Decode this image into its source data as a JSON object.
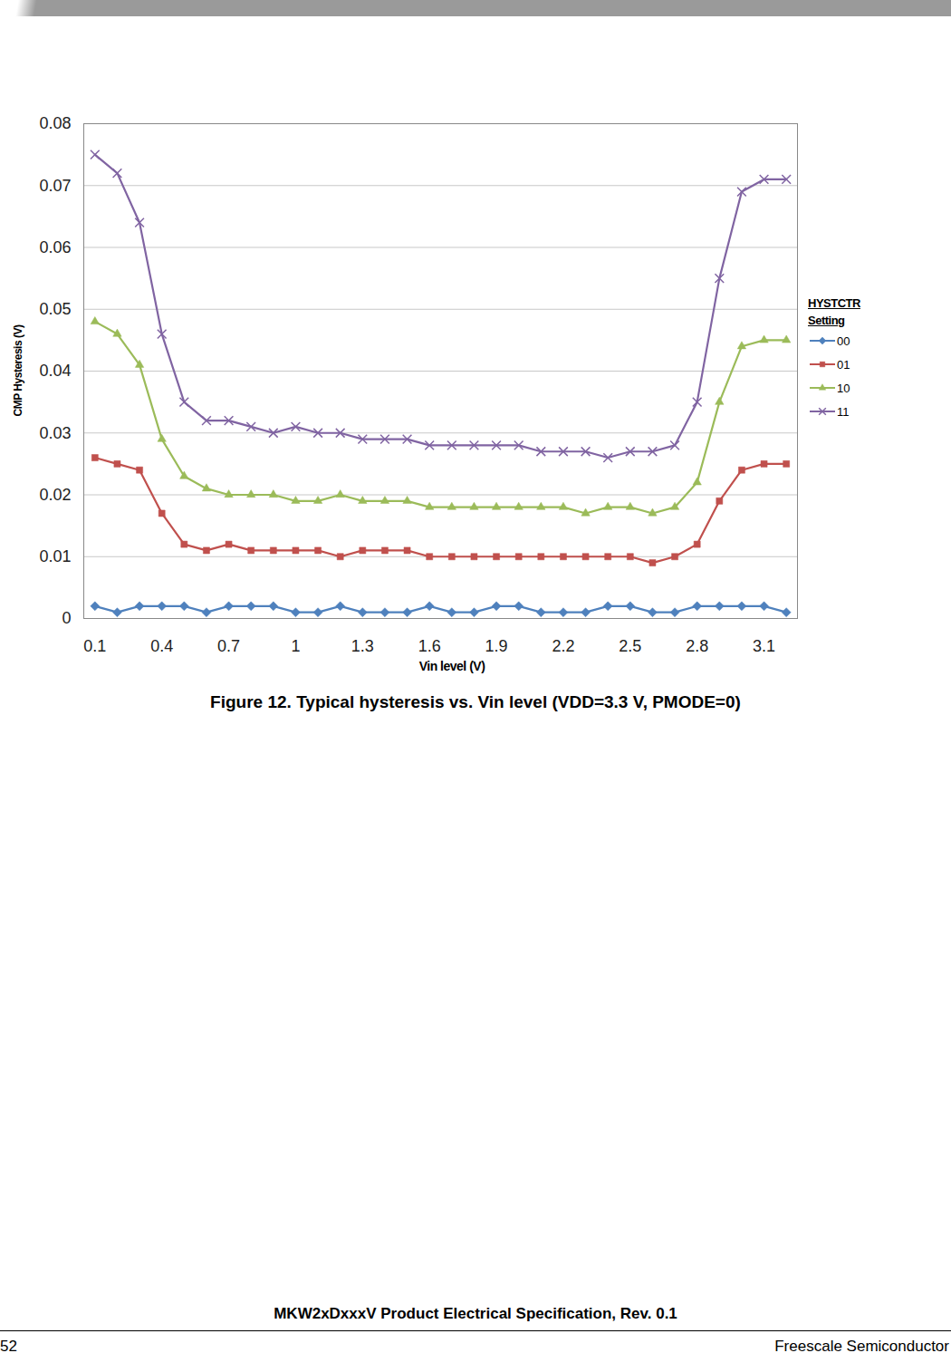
{
  "chart_data": {
    "type": "line",
    "title": "Figure 12. Typical hysteresis vs. Vin level (VDD=3.3 V, PMODE=0)",
    "x_label": "Vin level (V)",
    "y_label": "CMP Hysteresis (V)",
    "legend_title": "HYSTCTR Setting",
    "legend": "right",
    "grid": true,
    "x": [
      0.1,
      0.2,
      0.3,
      0.4,
      0.5,
      0.6,
      0.7,
      0.8,
      0.9,
      1.0,
      1.1,
      1.2,
      1.3,
      1.4,
      1.5,
      1.6,
      1.7,
      1.8,
      1.9,
      2.0,
      2.1,
      2.2,
      2.3,
      2.4,
      2.5,
      2.6,
      2.7,
      2.8,
      2.9,
      3.0,
      3.1,
      3.2
    ],
    "xlim": [
      0.05,
      3.25
    ],
    "xticks": [
      0.1,
      0.4,
      0.7,
      1,
      1.3,
      1.6,
      1.9,
      2.2,
      2.5,
      2.8,
      3.1
    ],
    "ylim": [
      0,
      0.08
    ],
    "yticks": [
      0,
      0.01,
      0.02,
      0.03,
      0.04,
      0.05,
      0.06,
      0.07,
      0.08
    ],
    "series": [
      {
        "name": "00",
        "color": "#4f81bd",
        "marker": "diamond",
        "values": [
          0.002,
          0.001,
          0.002,
          0.002,
          0.002,
          0.001,
          0.002,
          0.002,
          0.002,
          0.001,
          0.001,
          0.002,
          0.001,
          0.001,
          0.001,
          0.002,
          0.001,
          0.001,
          0.002,
          0.002,
          0.001,
          0.001,
          0.001,
          0.002,
          0.002,
          0.001,
          0.001,
          0.002,
          0.002,
          0.002,
          0.002,
          0.001
        ]
      },
      {
        "name": "01",
        "color": "#c0504d",
        "marker": "square",
        "values": [
          0.026,
          0.025,
          0.024,
          0.017,
          0.012,
          0.011,
          0.012,
          0.011,
          0.011,
          0.011,
          0.011,
          0.01,
          0.011,
          0.011,
          0.011,
          0.01,
          0.01,
          0.01,
          0.01,
          0.01,
          0.01,
          0.01,
          0.01,
          0.01,
          0.01,
          0.009,
          0.01,
          0.012,
          0.019,
          0.024,
          0.025,
          0.025
        ]
      },
      {
        "name": "10",
        "color": "#9bbb59",
        "marker": "triangle",
        "values": [
          0.048,
          0.046,
          0.041,
          0.029,
          0.023,
          0.021,
          0.02,
          0.02,
          0.02,
          0.019,
          0.019,
          0.02,
          0.019,
          0.019,
          0.019,
          0.018,
          0.018,
          0.018,
          0.018,
          0.018,
          0.018,
          0.018,
          0.017,
          0.018,
          0.018,
          0.017,
          0.018,
          0.022,
          0.035,
          0.044,
          0.045,
          0.045
        ]
      },
      {
        "name": "11",
        "color": "#8064a2",
        "marker": "times",
        "values": [
          0.075,
          0.072,
          0.064,
          0.046,
          0.035,
          0.032,
          0.032,
          0.031,
          0.03,
          0.031,
          0.03,
          0.03,
          0.029,
          0.029,
          0.029,
          0.028,
          0.028,
          0.028,
          0.028,
          0.028,
          0.027,
          0.027,
          0.027,
          0.026,
          0.027,
          0.027,
          0.028,
          0.035,
          0.055,
          0.069,
          0.071,
          0.071
        ]
      }
    ]
  },
  "page": {
    "footer_title": "MKW2xDxxxV Product Electrical Specification, Rev. 0.1",
    "page_number": "52",
    "company": "Freescale Semiconductor"
  }
}
